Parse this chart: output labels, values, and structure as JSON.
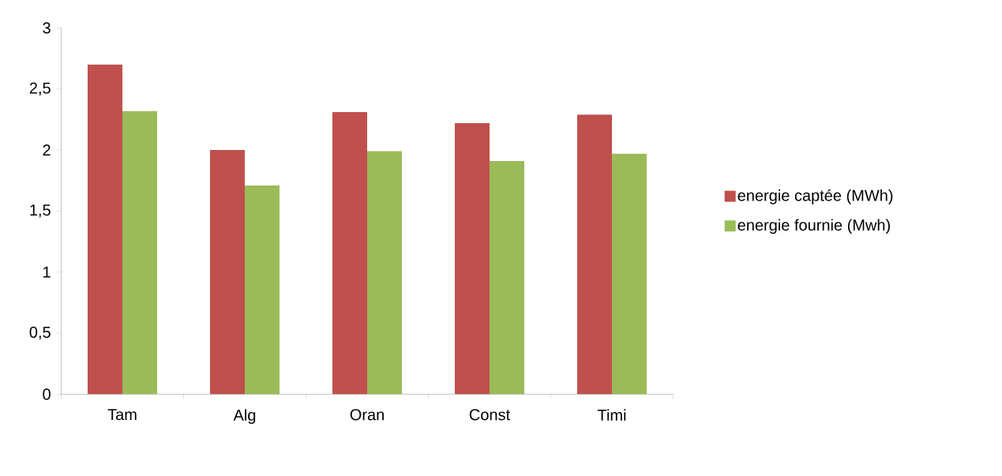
{
  "chart_data": {
    "type": "bar",
    "categories": [
      "Tam",
      "Alg",
      "Oran",
      "Const",
      "Timi"
    ],
    "series": [
      {
        "name": "energie captée (MWh)",
        "color": "#c0504d",
        "values": [
          2.7,
          2.0,
          2.31,
          2.22,
          2.29
        ]
      },
      {
        "name": "energie fournie (Mwh)",
        "color": "#9bbb59",
        "values": [
          2.32,
          1.71,
          1.99,
          1.91,
          1.97
        ]
      }
    ],
    "ylim": [
      0,
      3
    ],
    "yticks": [
      {
        "value": 0,
        "label": "0"
      },
      {
        "value": 0.5,
        "label": "0,5"
      },
      {
        "value": 1,
        "label": "1"
      },
      {
        "value": 1.5,
        "label": "1,5"
      },
      {
        "value": 2,
        "label": "2"
      },
      {
        "value": 2.5,
        "label": "2,5"
      },
      {
        "value": 3,
        "label": "3"
      }
    ],
    "grid": false,
    "legend": "right"
  }
}
